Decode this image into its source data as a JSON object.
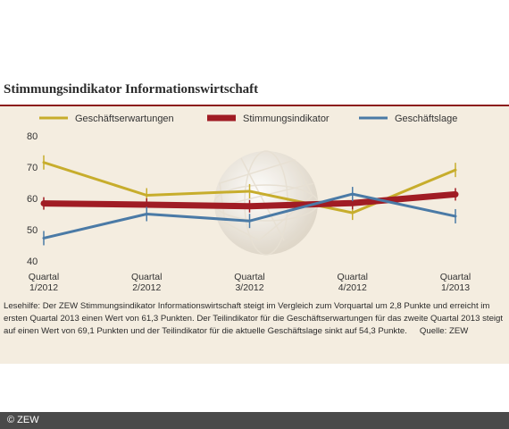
{
  "title": "Stimmungsindikator Informationswirtschaft",
  "caption": "Lesehilfe: Der ZEW Stimmungsindikator Informationswirtschaft steigt im Vergleich zum Vorquartal um 2,8 Punkte und erreicht im ersten Quartal 2013 einen Wert von 61,3 Punkten. Der Teilindikator für die Geschäftserwartungen für das zweite Quartal 2013 steigt auf einen Wert von 69,1 Punkten und der Teilindikator für die aktuelle Geschäftslage sinkt auf 54,3 Punkte.",
  "source": "Quelle: ZEW",
  "footer": "© ZEW",
  "colors": {
    "panel": "#f4ede0",
    "rule": "#8c1d1d"
  },
  "chart_data": {
    "type": "line",
    "categories": [
      [
        "Quartal",
        "1/2012"
      ],
      [
        "Quartal",
        "2/2012"
      ],
      [
        "Quartal",
        "3/2012"
      ],
      [
        "Quartal",
        "4/2012"
      ],
      [
        "Quartal",
        "1/2013"
      ]
    ],
    "yticks": [
      40,
      50,
      60,
      70,
      80
    ],
    "ylim": [
      40,
      80
    ],
    "grid": false,
    "legend": "top",
    "series": [
      {
        "name": "Geschäftserwartungen",
        "color": "#c7ad2c",
        "width": 3,
        "values": [
          71.5,
          61,
          62.3,
          55.4,
          69.1
        ]
      },
      {
        "name": "Stimmungsindikator",
        "color": "#a01c24",
        "width": 7,
        "values": [
          58.4,
          58,
          57.5,
          58.5,
          61.3
        ]
      },
      {
        "name": "Geschäftslage",
        "color": "#4a7aa6",
        "width": 3,
        "values": [
          47.3,
          55,
          52.8,
          61.4,
          54.3
        ]
      }
    ]
  }
}
